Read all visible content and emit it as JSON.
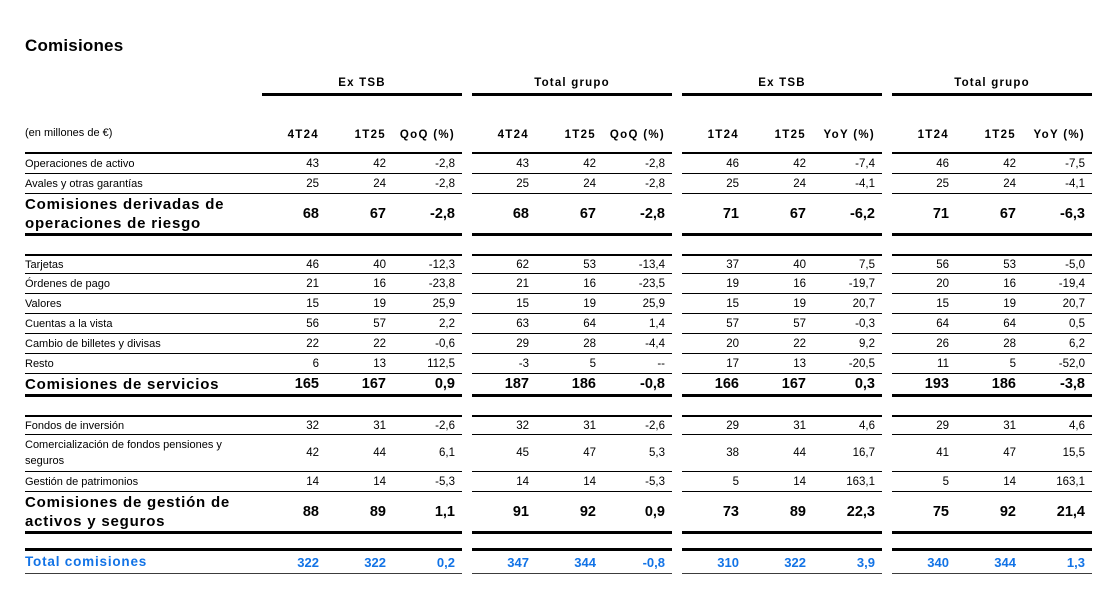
{
  "title": "Comisiones",
  "unit_label": "(en millones de €)",
  "accent_color": "#1273e6",
  "column_groups": [
    {
      "label": "Ex TSB",
      "columns": [
        "4T24",
        "1T25",
        "QoQ (%)"
      ]
    },
    {
      "label": "Total grupo",
      "columns": [
        "4T24",
        "1T25",
        "QoQ (%)"
      ]
    },
    {
      "label": "Ex TSB",
      "columns": [
        "1T24",
        "1T25",
        "YoY (%)"
      ]
    },
    {
      "label": "Total grupo",
      "columns": [
        "1T24",
        "1T25",
        "YoY (%)"
      ]
    }
  ],
  "sections": [
    {
      "rows": [
        {
          "label": "Operaciones de activo",
          "bold": false,
          "lines": 1,
          "values": [
            "43",
            "42",
            "-2,8",
            "43",
            "42",
            "-2,8",
            "46",
            "42",
            "-7,4",
            "46",
            "42",
            "-7,5"
          ]
        },
        {
          "label": "Avales y otras garantías",
          "bold": false,
          "lines": 1,
          "values": [
            "25",
            "24",
            "-2,8",
            "25",
            "24",
            "-2,8",
            "25",
            "24",
            "-4,1",
            "25",
            "24",
            "-4,1"
          ]
        },
        {
          "label": "Comisiones derivadas de operaciones de riesgo",
          "bold": true,
          "lines": 2,
          "values": [
            "68",
            "67",
            "-2,8",
            "68",
            "67",
            "-2,8",
            "71",
            "67",
            "-6,2",
            "71",
            "67",
            "-6,3"
          ]
        }
      ]
    },
    {
      "rows": [
        {
          "label": "Tarjetas",
          "bold": false,
          "lines": 1,
          "values": [
            "46",
            "40",
            "-12,3",
            "62",
            "53",
            "-13,4",
            "37",
            "40",
            "7,5",
            "56",
            "53",
            "-5,0"
          ]
        },
        {
          "label": "Órdenes de pago",
          "bold": false,
          "lines": 1,
          "values": [
            "21",
            "16",
            "-23,8",
            "21",
            "16",
            "-23,5",
            "19",
            "16",
            "-19,7",
            "20",
            "16",
            "-19,4"
          ]
        },
        {
          "label": "Valores",
          "bold": false,
          "lines": 1,
          "values": [
            "15",
            "19",
            "25,9",
            "15",
            "19",
            "25,9",
            "15",
            "19",
            "20,7",
            "15",
            "19",
            "20,7"
          ]
        },
        {
          "label": "Cuentas a la vista",
          "bold": false,
          "lines": 1,
          "values": [
            "56",
            "57",
            "2,2",
            "63",
            "64",
            "1,4",
            "57",
            "57",
            "-0,3",
            "64",
            "64",
            "0,5"
          ]
        },
        {
          "label": "Cambio de billetes y divisas",
          "bold": false,
          "lines": 1,
          "values": [
            "22",
            "22",
            "-0,6",
            "29",
            "28",
            "-4,4",
            "20",
            "22",
            "9,2",
            "26",
            "28",
            "6,2"
          ]
        },
        {
          "label": "Resto",
          "bold": false,
          "lines": 1,
          "values": [
            "6",
            "13",
            "112,5",
            "-3",
            "5",
            "--",
            "17",
            "13",
            "-20,5",
            "11",
            "5",
            "-52,0"
          ]
        },
        {
          "label": "Comisiones de servicios",
          "bold": true,
          "lines": 1,
          "values": [
            "165",
            "167",
            "0,9",
            "187",
            "186",
            "-0,8",
            "166",
            "167",
            "0,3",
            "193",
            "186",
            "-3,8"
          ]
        }
      ]
    },
    {
      "rows": [
        {
          "label": "Fondos de inversión",
          "bold": false,
          "lines": 1,
          "values": [
            "32",
            "31",
            "-2,6",
            "32",
            "31",
            "-2,6",
            "29",
            "31",
            "4,6",
            "29",
            "31",
            "4,6"
          ]
        },
        {
          "label": "Comercialización de fondos pensiones y seguros",
          "bold": false,
          "lines": 2,
          "values": [
            "42",
            "44",
            "6,1",
            "45",
            "47",
            "5,3",
            "38",
            "44",
            "16,7",
            "41",
            "47",
            "15,5"
          ]
        },
        {
          "label": "Gestión de patrimonios",
          "bold": false,
          "lines": 1,
          "values": [
            "14",
            "14",
            "-5,3",
            "14",
            "14",
            "-5,3",
            "5",
            "14",
            "163,1",
            "5",
            "14",
            "163,1"
          ]
        },
        {
          "label": "Comisiones de gestión de activos y seguros",
          "bold": true,
          "lines": 2,
          "values": [
            "88",
            "89",
            "1,1",
            "91",
            "92",
            "0,9",
            "73",
            "89",
            "22,3",
            "75",
            "92",
            "21,4"
          ]
        }
      ]
    }
  ],
  "total_row": {
    "label": "Total comisiones",
    "values": [
      "322",
      "322",
      "0,2",
      "347",
      "344",
      "-0,8",
      "310",
      "322",
      "3,9",
      "340",
      "344",
      "1,3"
    ]
  }
}
